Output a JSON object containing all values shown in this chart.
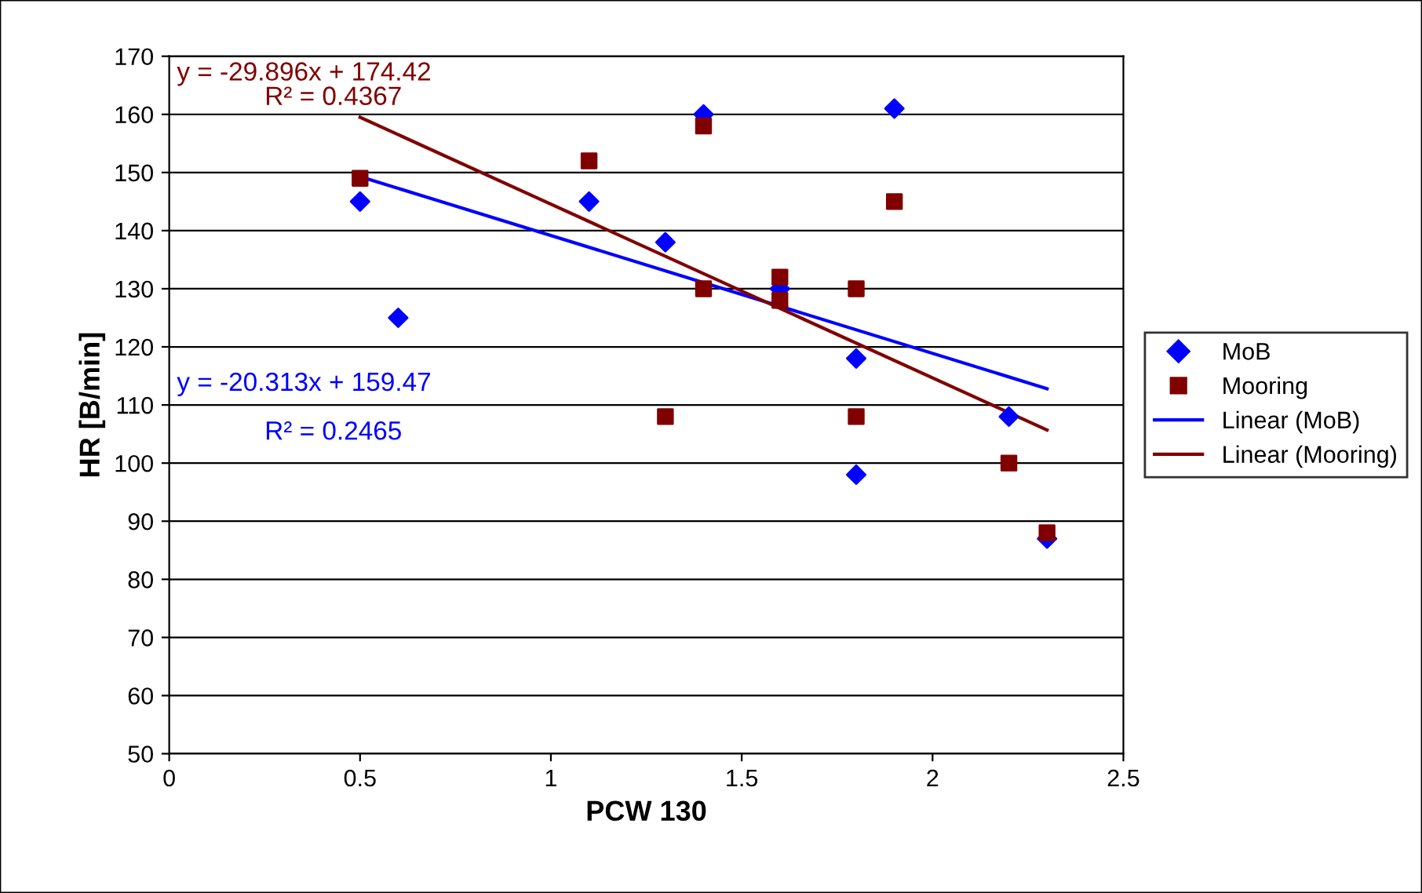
{
  "chart_data": {
    "type": "scatter",
    "xlabel": "PCW 130",
    "ylabel": "HR [B/min]",
    "series": [
      {
        "name": "MoB",
        "color": "#0000ff",
        "marker": "diamond",
        "x": [
          0.5,
          0.6,
          1.1,
          1.3,
          1.4,
          1.6,
          1.8,
          1.8,
          1.9,
          2.2,
          2.3
        ],
        "values": [
          145,
          125,
          145,
          138,
          160,
          130,
          118,
          98,
          161,
          108,
          87
        ]
      },
      {
        "name": "Mooring",
        "color": "#800000",
        "marker": "square",
        "x": [
          0.5,
          1.1,
          1.3,
          1.4,
          1.4,
          1.6,
          1.6,
          1.8,
          1.8,
          1.9,
          2.2,
          2.3
        ],
        "values": [
          149,
          152,
          108,
          158,
          130,
          132,
          128,
          130,
          108,
          145,
          100,
          88
        ]
      },
      {
        "name": "Linear (MoB)",
        "type": "line",
        "color": "#0000ff",
        "marker": "none",
        "line_style": "solid",
        "x": [
          0.5,
          2.3
        ],
        "values": [
          149.3,
          112.8
        ]
      },
      {
        "name": "Linear (Mooring)",
        "type": "line",
        "color": "#800000",
        "marker": "none",
        "line_style": "solid",
        "x": [
          0.5,
          2.3
        ],
        "values": [
          159.5,
          105.7
        ]
      }
    ],
    "annotations": [
      "y = -29.896x + 174.42",
      "R² = 0.4367",
      "y = -20.313x + 159.47",
      "R² = 0.2465"
    ],
    "xlim": [
      0,
      2.5
    ],
    "xticks": [
      0,
      0.5,
      1,
      1.5,
      2,
      2.5
    ],
    "ylim": [
      50,
      170
    ],
    "yticks": [
      50,
      60,
      70,
      80,
      90,
      100,
      110,
      120,
      130,
      140,
      150,
      160,
      170
    ],
    "grid": "y",
    "legend": "right"
  }
}
